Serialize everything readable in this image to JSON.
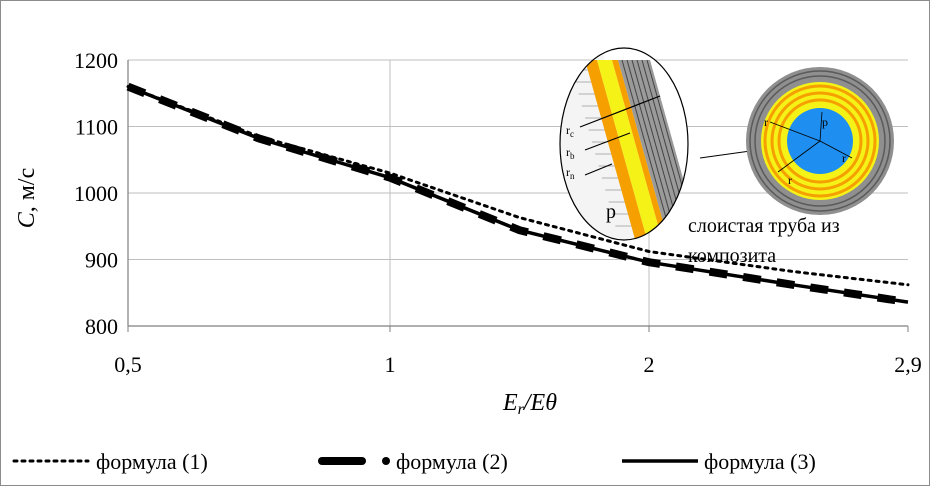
{
  "chart_data": {
    "type": "line",
    "title": "",
    "ylabel_italic": "C",
    "ylabel_unit": ", м/с",
    "xlabel_parts": [
      "E",
      "r",
      "/E",
      "θ"
    ],
    "y_ticks": [
      "1200",
      "1100",
      "1000",
      "900",
      "800"
    ],
    "x_ticks": [
      "0,5",
      "1",
      "2",
      "2,9"
    ],
    "x_tick_values": [
      0.5,
      1,
      2,
      2.9
    ],
    "ylim": [
      800,
      1200
    ],
    "grid": true,
    "legend_position": "bottom",
    "series": [
      {
        "name": "формула (1)",
        "style": "dotted",
        "x": [
          0.5,
          0.75,
          1,
          1.5,
          2,
          2.5,
          2.9
        ],
        "y": [
          1160,
          1085,
          1030,
          963,
          912,
          882,
          862
        ]
      },
      {
        "name": "формула (2)",
        "style": "dashed-thick",
        "x": [
          0.5,
          0.75,
          1,
          1.5,
          2,
          2.5,
          2.9
        ],
        "y": [
          1160,
          1082,
          1023,
          944,
          896,
          862,
          836
        ]
      },
      {
        "name": "формула (3)",
        "style": "solid",
        "x": [
          0.5,
          0.75,
          1,
          1.5,
          2,
          2.5,
          2.9
        ],
        "y": [
          1160,
          1082,
          1023,
          944,
          896,
          862,
          836
        ]
      }
    ],
    "annotations": {
      "inset_labels": [
        "r",
        "c",
        "r",
        "b",
        "r",
        "n",
        "p"
      ],
      "pipe_caption_line1": "слоистая труба из",
      "pipe_caption_line2": "композита",
      "pipe_small_labels": [
        "p",
        "r",
        "r",
        "r"
      ]
    }
  },
  "colors": {
    "line": "#000000",
    "grid": "#bfbfbf",
    "pipe_gray": "#8f8f8f",
    "pipe_dark": "#555555",
    "pipe_yellow": "#f5f218",
    "pipe_orange": "#f5a000",
    "pipe_blue": "#1e8ff0"
  }
}
